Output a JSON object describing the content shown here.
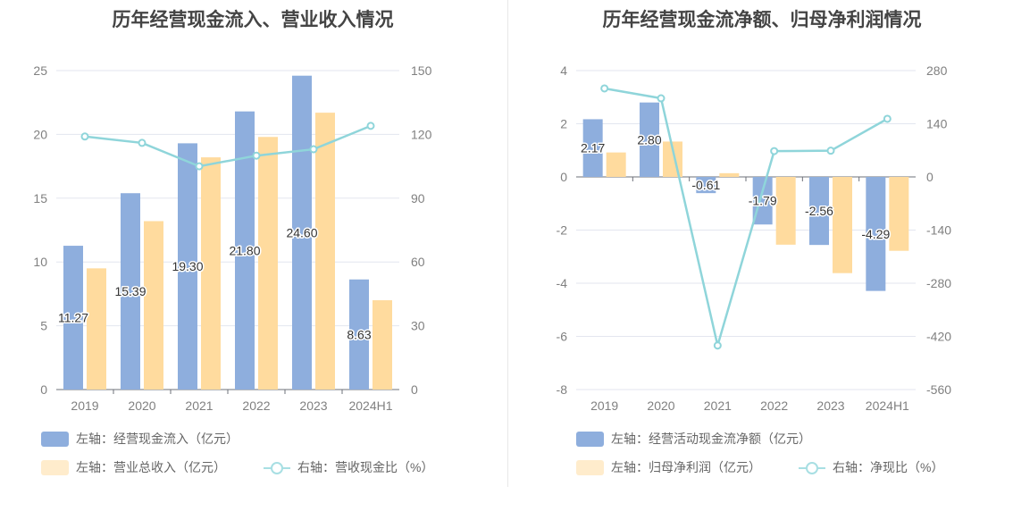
{
  "colors": {
    "bar1": "#8eaedd",
    "bar2": "#ffdb9e",
    "line": "#8fd5da",
    "legend_bar2": "#ffeccc",
    "legend_line": "#a8dfe3"
  },
  "chart_data": [
    {
      "type": "bar",
      "title": "历年经营现金流入、营业收入情况",
      "categories": [
        "2019",
        "2020",
        "2021",
        "2022",
        "2023",
        "2024H1"
      ],
      "y_left": {
        "min": 0,
        "max": 25,
        "ticks": [
          "0",
          "5",
          "10",
          "15",
          "20",
          "25"
        ]
      },
      "y_right": {
        "min": 0,
        "max": 150,
        "ticks": [
          "0",
          "30",
          "60",
          "90",
          "120",
          "150"
        ]
      },
      "series": [
        {
          "name": "左轴：经营现金流入（亿元）",
          "type": "bar",
          "axis": "left",
          "values": [
            11.27,
            15.39,
            19.3,
            21.8,
            24.6,
            8.63
          ],
          "labels": [
            "11.27",
            "15.39",
            "19.30",
            "21.80",
            "24.60",
            "8.63"
          ]
        },
        {
          "name": "左轴：营业总收入（亿元）",
          "type": "bar",
          "axis": "left",
          "values": [
            9.5,
            13.2,
            18.2,
            19.8,
            21.7,
            7.0
          ]
        },
        {
          "name": "右轴：营收现金比（%）",
          "type": "line",
          "axis": "right",
          "values": [
            119,
            116,
            105,
            110,
            113,
            124
          ]
        }
      ]
    },
    {
      "type": "bar",
      "title": "历年经营现金流净额、归母净利润情况",
      "categories": [
        "2019",
        "2020",
        "2021",
        "2022",
        "2023",
        "2024H1"
      ],
      "y_left": {
        "min": -8,
        "max": 4,
        "ticks": [
          "-8",
          "-6",
          "-4",
          "-2",
          "0",
          "2",
          "4"
        ]
      },
      "y_right": {
        "min": -560,
        "max": 280,
        "ticks": [
          "-560",
          "-420",
          "-280",
          "-140",
          "0",
          "140",
          "280"
        ]
      },
      "series": [
        {
          "name": "左轴：经营活动现金流净额（亿元）",
          "type": "bar",
          "axis": "left",
          "values": [
            2.17,
            2.8,
            -0.61,
            -1.79,
            -2.56,
            -4.29
          ],
          "labels": [
            "2.17",
            "2.80",
            "-0.61",
            "-1.79",
            "-2.56",
            "-4.29"
          ]
        },
        {
          "name": "左轴：归母净利润（亿元）",
          "type": "bar",
          "axis": "left",
          "values": [
            0.92,
            1.33,
            0.14,
            -2.55,
            -3.62,
            -2.78
          ]
        },
        {
          "name": "右轴：净现比（%）",
          "type": "line",
          "axis": "right",
          "values": [
            233,
            207,
            -444,
            68,
            69,
            153
          ]
        }
      ]
    }
  ]
}
